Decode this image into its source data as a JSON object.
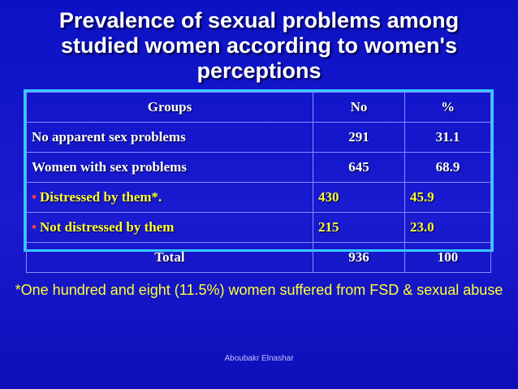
{
  "title": "Prevalence of sexual problems among studied women according to women's perceptions",
  "table": {
    "headers": [
      "Groups",
      "No",
      "%"
    ],
    "rows": [
      {
        "group": "No apparent sex problems",
        "no": "291",
        "pct": "31.1"
      },
      {
        "group": "Women with sex problems",
        "no": "645",
        "pct": "68.9"
      },
      {
        "bullet": "•",
        "group": "Distressed by them*.",
        "no": "430",
        "pct": "45.9"
      },
      {
        "bullet": "•",
        "group": "Not distressed by them",
        "no": "215",
        "pct": "23.0"
      },
      {
        "group": "Total",
        "no": "936",
        "pct": "100"
      }
    ]
  },
  "footnote": "*One hundred and eight (11.5%) women suffered from FSD & sexual abuse",
  "author": "Aboubakr Elnashar",
  "colors": {
    "background": "#1414c8",
    "border": "#33ccff",
    "highlight": "#ffff33",
    "bullet": "#ff4040"
  }
}
